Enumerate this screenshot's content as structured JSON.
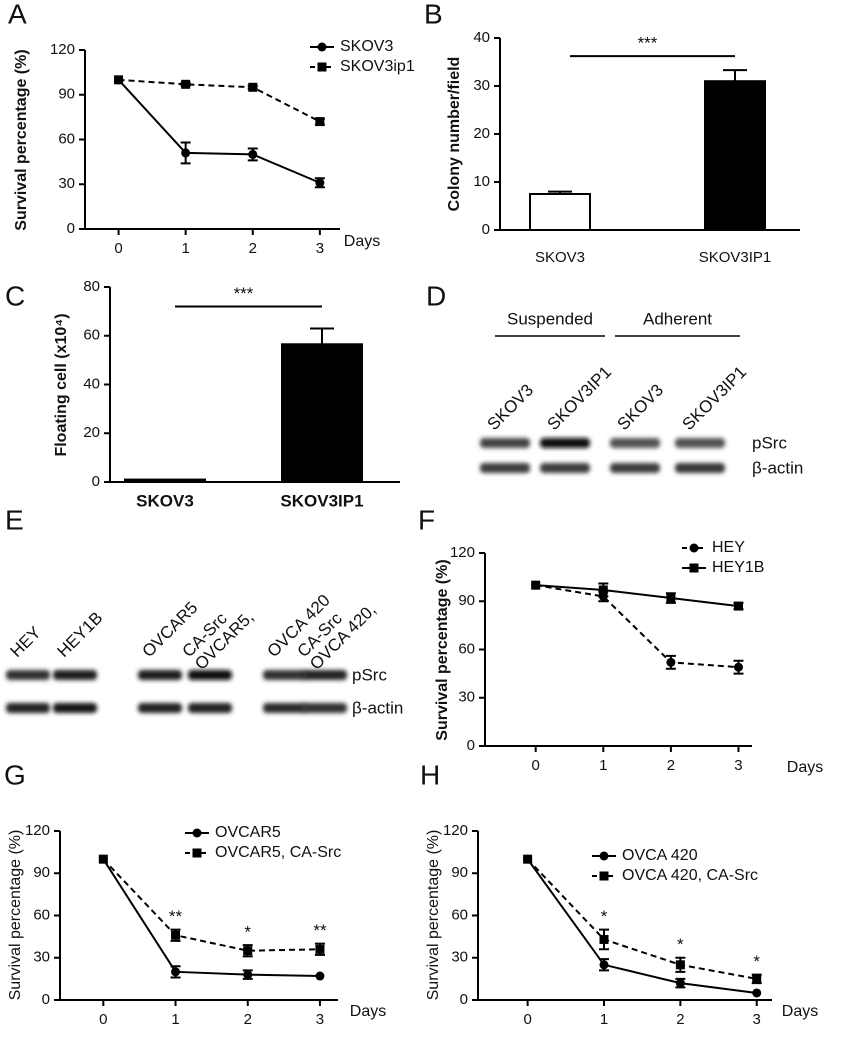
{
  "chart_data": [
    {
      "panel": "A",
      "type": "line",
      "ylabel": "Survival percentage (%)",
      "xlabel": "Days",
      "x": [
        0,
        1,
        2,
        3
      ],
      "xlim": [
        -0.5,
        3.3
      ],
      "xticks": [
        0,
        1,
        2,
        3
      ],
      "ylim": [
        0,
        120
      ],
      "yticks": [
        0,
        30,
        60,
        90,
        120
      ],
      "series": [
        {
          "name": "SKOV3",
          "color": "#000000",
          "marker": "circle",
          "dashed": false,
          "values": [
            100,
            51,
            50,
            31
          ],
          "errors": [
            0,
            7,
            4,
            3
          ]
        },
        {
          "name": "SKOV3ip1",
          "color": "#000000",
          "marker": "square",
          "dashed": true,
          "values": [
            100,
            97,
            95,
            72
          ],
          "errors": [
            0,
            1,
            1,
            2
          ]
        }
      ],
      "annotations": []
    },
    {
      "panel": "B",
      "type": "bar",
      "ylabel": "Colony number/field",
      "categories": [
        "SKOV3",
        "SKOV3IP1"
      ],
      "values": [
        7.5,
        31
      ],
      "errors": [
        0.5,
        2.3
      ],
      "colors": [
        "#ffffff",
        "#000000"
      ],
      "ylim": [
        0,
        40
      ],
      "yticks": [
        0,
        10,
        20,
        30,
        40
      ],
      "significance": "***"
    },
    {
      "panel": "C",
      "type": "bar",
      "ylabel": "Floating cell (x10⁴)",
      "categories": [
        "SKOV3",
        "SKOV3IP1"
      ],
      "values": [
        1,
        56.5
      ],
      "errors": [
        0,
        6.5
      ],
      "colors": [
        "#000000",
        "#000000"
      ],
      "ylim": [
        0,
        80
      ],
      "yticks": [
        0,
        20,
        40,
        60,
        80
      ],
      "significance": "***"
    },
    {
      "panel": "F",
      "type": "line",
      "ylabel": "Survival percentage (%)",
      "xlabel": "Days",
      "x": [
        0,
        1,
        2,
        3
      ],
      "xlim": [
        -0.75,
        3.2
      ],
      "xticks": [
        0,
        1,
        2,
        3
      ],
      "ylim": [
        0,
        120
      ],
      "yticks": [
        0,
        30,
        60,
        90,
        120
      ],
      "series": [
        {
          "name": "HEY",
          "color": "#000000",
          "marker": "circle",
          "dashed": true,
          "values": [
            100,
            93,
            52,
            49
          ],
          "errors": [
            0,
            3,
            4,
            4
          ]
        },
        {
          "name": "HEY1B",
          "color": "#000000",
          "marker": "square",
          "dashed": false,
          "values": [
            100,
            97,
            92,
            87
          ],
          "errors": [
            0,
            4,
            3,
            2
          ]
        }
      ],
      "annotations": []
    },
    {
      "panel": "G",
      "type": "line",
      "ylabel": "Survival percentage (%)",
      "xlabel": "Days",
      "x": [
        0,
        1,
        2,
        3
      ],
      "xlim": [
        -0.6,
        3.25
      ],
      "xticks": [
        0,
        1,
        2,
        3
      ],
      "ylim": [
        0,
        120
      ],
      "yticks": [
        0,
        30,
        60,
        90,
        120
      ],
      "series": [
        {
          "name": "OVCAR5",
          "color": "#000000",
          "marker": "circle",
          "dashed": false,
          "values": [
            100,
            20,
            18,
            17
          ],
          "errors": [
            0,
            4,
            3,
            0
          ]
        },
        {
          "name": "OVCAR5, CA-Src",
          "color": "#000000",
          "marker": "square",
          "dashed": true,
          "values": [
            100,
            46,
            35,
            36
          ],
          "errors": [
            0,
            4,
            4,
            4
          ]
        }
      ],
      "annotations": [
        {
          "x": 1,
          "text": "**"
        },
        {
          "x": 2,
          "text": "*"
        },
        {
          "x": 3,
          "text": "**"
        }
      ]
    },
    {
      "panel": "H",
      "type": "line",
      "ylabel": "Survival percentage (%)",
      "xlabel": "Days",
      "x": [
        0,
        1,
        2,
        3
      ],
      "xlim": [
        -0.65,
        3.2
      ],
      "xticks": [
        0,
        1,
        2,
        3
      ],
      "ylim": [
        0,
        120
      ],
      "yticks": [
        0,
        30,
        60,
        90,
        120
      ],
      "series": [
        {
          "name": "OVCA 420",
          "color": "#000000",
          "marker": "circle",
          "dashed": false,
          "values": [
            100,
            25,
            12,
            5
          ],
          "errors": [
            0,
            4,
            3,
            0
          ]
        },
        {
          "name": "OVCA 420,  CA-Src",
          "color": "#000000",
          "marker": "square",
          "dashed": true,
          "values": [
            100,
            43,
            25,
            15
          ],
          "errors": [
            0,
            7,
            5,
            3
          ]
        }
      ],
      "annotations": [
        {
          "x": 1,
          "text": "*"
        },
        {
          "x": 2,
          "text": "*"
        },
        {
          "x": 3,
          "text": "*"
        }
      ]
    }
  ],
  "blots": [
    {
      "panel": "D",
      "groups": [
        "Suspended",
        "Adherent"
      ],
      "lanes": [
        [
          "SKOV3"
        ],
        [
          "SKOV3IP1"
        ],
        [
          "SKOV3"
        ],
        [
          "SKOV3IP1"
        ]
      ],
      "bands": [
        "pSrc",
        "β-actin"
      ]
    },
    {
      "panel": "E",
      "groups": [],
      "lanes": [
        [
          "HEY"
        ],
        [
          "HEY1B"
        ],
        [
          "OVCAR5"
        ],
        [
          "OVCAR5,",
          "CA-Src"
        ],
        [
          "OVCA 420"
        ],
        [
          "OVCA 420,",
          "CA-Src"
        ]
      ],
      "bands": [
        "pSrc",
        "β-actin"
      ]
    }
  ]
}
